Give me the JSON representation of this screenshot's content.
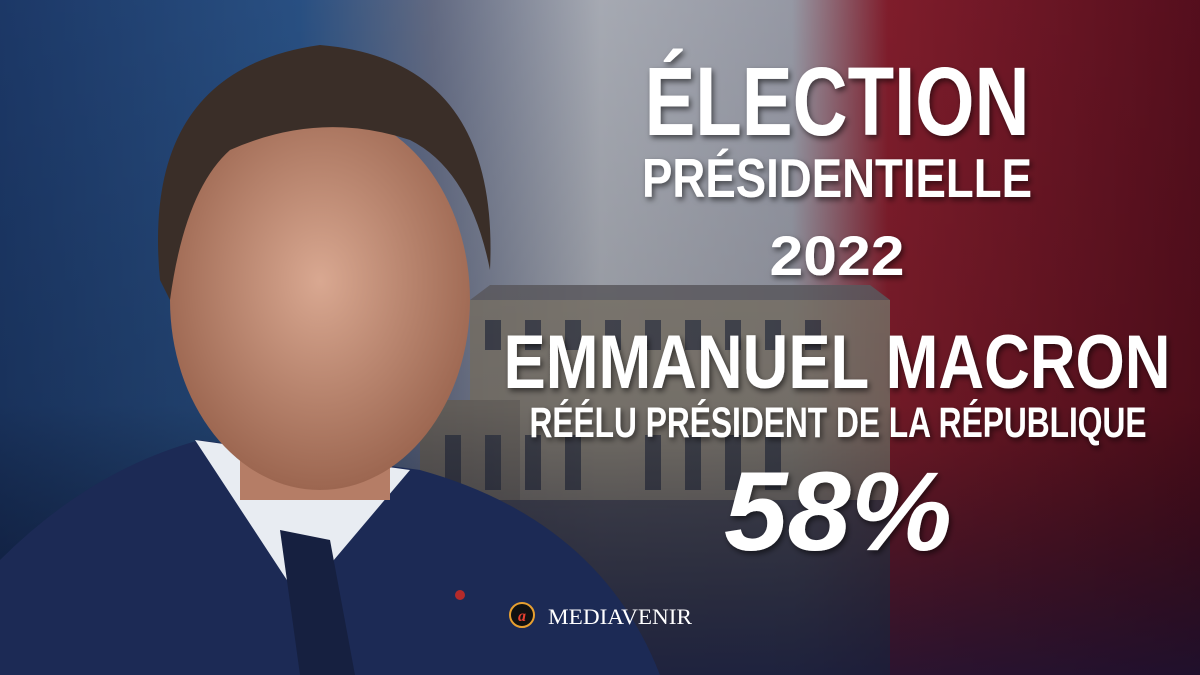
{
  "poster": {
    "title": "ÉLECTION",
    "subtitle": "PRÉSIDENTIELLE",
    "year": "2022",
    "name": "EMMANUEL MACRON",
    "role": "RÉÉLU PRÉSIDENT DE LA RÉPUBLIQUE",
    "result": "58%",
    "brand": "MEDIAVENIR"
  }
}
